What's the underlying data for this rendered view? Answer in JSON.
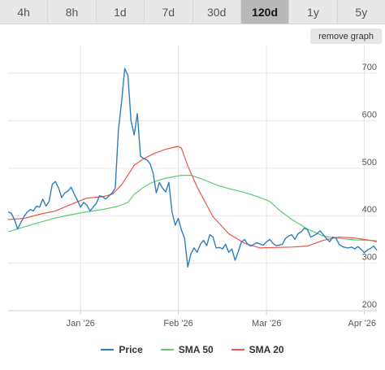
{
  "tabs": [
    {
      "label": "4h",
      "active": false
    },
    {
      "label": "8h",
      "active": false
    },
    {
      "label": "1d",
      "active": false
    },
    {
      "label": "7d",
      "active": false
    },
    {
      "label": "30d",
      "active": false
    },
    {
      "label": "120d",
      "active": true
    },
    {
      "label": "1y",
      "active": false
    },
    {
      "label": "5y",
      "active": false
    }
  ],
  "remove_graph_label": "remove graph",
  "chart_data": {
    "type": "line",
    "x_labels": [
      "Jan '26",
      "Feb '26",
      "Mar '26",
      "Apr '26"
    ],
    "x_tick_days": [
      23,
      54,
      82,
      113
    ],
    "x_range_days": [
      0,
      117
    ],
    "y_ticks": [
      200,
      300,
      400,
      500,
      600,
      700
    ],
    "ylim": [
      200,
      760
    ],
    "grid": true,
    "legend_position": "bottom",
    "colors": {
      "price": "#2f7ebc",
      "sma50": "#5ccb74",
      "sma20": "#e8564e"
    },
    "series": [
      {
        "name": "Price",
        "key": "price",
        "x": [
          0,
          1,
          2,
          3,
          4,
          5,
          6,
          7,
          8,
          9,
          10,
          11,
          12,
          13,
          14,
          15,
          16,
          17,
          18,
          19,
          20,
          21,
          22,
          23,
          24,
          25,
          26,
          27,
          28,
          29,
          30,
          31,
          32,
          33,
          34,
          35,
          36,
          37,
          38,
          39,
          40,
          41,
          42,
          43,
          44,
          45,
          46,
          47,
          48,
          49,
          50,
          51,
          52,
          53,
          54,
          55,
          56,
          57,
          58,
          59,
          60,
          61,
          62,
          63,
          64,
          65,
          66,
          67,
          68,
          69,
          70,
          71,
          72,
          73,
          74,
          75,
          76,
          77,
          78,
          79,
          80,
          81,
          82,
          83,
          84,
          85,
          86,
          87,
          88,
          89,
          90,
          91,
          92,
          93,
          94,
          95,
          96,
          97,
          98,
          99,
          100,
          101,
          102,
          103,
          104,
          105,
          106,
          107,
          108,
          109,
          110,
          111,
          112,
          113,
          114,
          115,
          116,
          117
        ],
        "values": [
          408,
          405,
          392,
          372,
          385,
          398,
          407,
          413,
          410,
          420,
          418,
          435,
          420,
          430,
          466,
          472,
          458,
          438,
          448,
          452,
          460,
          445,
          432,
          418,
          428,
          422,
          410,
          418,
          426,
          442,
          440,
          435,
          442,
          448,
          458,
          580,
          640,
          710,
          695,
          600,
          570,
          615,
          525,
          520,
          518,
          510,
          490,
          448,
          470,
          458,
          450,
          470,
          408,
          380,
          394,
          370,
          352,
          292,
          320,
          332,
          323,
          340,
          348,
          337,
          360,
          355,
          332,
          333,
          330,
          340,
          323,
          330,
          306,
          324,
          344,
          350,
          340,
          336,
          340,
          343,
          340,
          338,
          345,
          350,
          342,
          337,
          338,
          340,
          352,
          357,
          360,
          350,
          362,
          366,
          374,
          370,
          355,
          358,
          362,
          368,
          360,
          352,
          345,
          355,
          353,
          340,
          335,
          333,
          332,
          334,
          330,
          335,
          329,
          322,
          328,
          331,
          336,
          327
        ]
      },
      {
        "name": "SMA 50",
        "key": "sma50",
        "x": [
          0,
          5,
          10,
          15,
          20,
          25,
          30,
          35,
          38,
          40,
          43,
          45,
          47,
          50,
          55,
          58,
          62,
          66,
          70,
          75,
          80,
          83,
          86,
          90,
          95,
          100,
          105,
          110,
          115,
          117
        ],
        "values": [
          366,
          376,
          386,
          395,
          402,
          408,
          413,
          420,
          428,
          445,
          460,
          468,
          473,
          479,
          485,
          485,
          476,
          465,
          457,
          449,
          438,
          430,
          412,
          392,
          372,
          357,
          352,
          349,
          348,
          347
        ]
      },
      {
        "name": "SMA 20",
        "key": "sma20",
        "x": [
          0,
          5,
          10,
          15,
          20,
          25,
          30,
          33,
          36,
          40,
          43,
          46,
          50,
          54,
          55,
          57,
          60,
          65,
          70,
          75,
          80,
          85,
          90,
          95,
          100,
          105,
          110,
          115,
          117
        ],
        "values": [
          392,
          394,
          403,
          410,
          424,
          437,
          440,
          445,
          465,
          506,
          520,
          530,
          540,
          546,
          542,
          505,
          460,
          398,
          362,
          342,
          332,
          333,
          334,
          336,
          348,
          355,
          353,
          348,
          345
        ]
      }
    ]
  }
}
